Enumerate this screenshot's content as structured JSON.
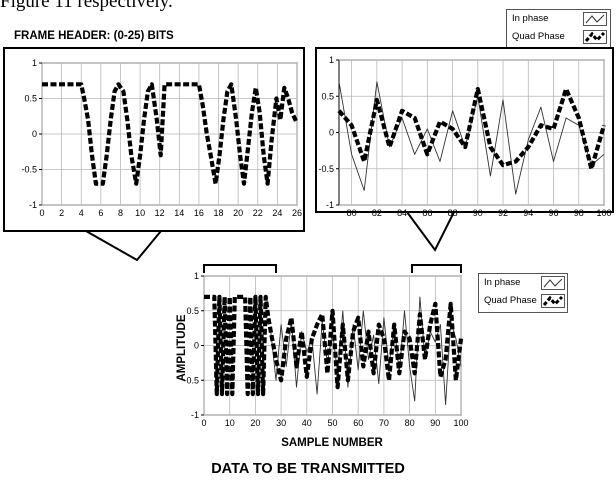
{
  "caption_fragment": "Figure 11 respectively.",
  "frame_header_label": "FRAME HEADER: (0-25) BITS",
  "bottom_title": "DATA TO BE TRANSMITTED",
  "legend": {
    "in_phase": "In phase",
    "quad_phase": "Quad Phase"
  },
  "colors": {
    "in_phase": "#333333",
    "quad_phase": "#000000",
    "grid": "#b8b8b8",
    "frame": "#000000"
  },
  "chart_data": [
    {
      "type": "line",
      "title": "FRAME HEADER: (0-25) BITS",
      "xlim": [
        0,
        26
      ],
      "ylim": [
        -1,
        1
      ],
      "xticks": [
        0,
        2,
        4,
        6,
        8,
        10,
        12,
        14,
        16,
        18,
        20,
        22,
        24,
        26
      ],
      "yticks": [
        -1,
        -0.5,
        0,
        0.5,
        1
      ],
      "grid": true,
      "series": [
        {
          "name": "Quad Phase",
          "style": "thick-dashed",
          "x": [
            0,
            4,
            4.3,
            4.7,
            5.1,
            5.5,
            6.2,
            6.6,
            7,
            7.4,
            7.8,
            8.3,
            8.7,
            9.1,
            9.6,
            10,
            10.4,
            10.8,
            11.2,
            11.7,
            12.1,
            12.5,
            16,
            16.4,
            16.8,
            17.2,
            17.7,
            18.1,
            18.5,
            18.9,
            19.3,
            19.8,
            20.2,
            20.6,
            21,
            21.4,
            21.8,
            22.2,
            22.6,
            23,
            23.4,
            23.9,
            24.3,
            24.7,
            25.1,
            25.5,
            26
          ],
          "y": [
            0.7,
            0.7,
            0.5,
            0.2,
            -0.3,
            -0.7,
            -0.7,
            -0.3,
            0.2,
            0.6,
            0.7,
            0.6,
            0.2,
            -0.3,
            -0.7,
            -0.3,
            0.2,
            0.6,
            0.7,
            0.2,
            -0.3,
            0.7,
            0.7,
            0.4,
            0,
            -0.3,
            -0.7,
            -0.3,
            0.2,
            0.6,
            0.7,
            0.2,
            -0.3,
            -0.7,
            -0.2,
            0.3,
            0.65,
            0.3,
            -0.3,
            -0.7,
            -0.1,
            0.5,
            0.2,
            0.65,
            0.5,
            0.3,
            0.15
          ]
        }
      ]
    },
    {
      "type": "line",
      "xlim": [
        79,
        100
      ],
      "ylim": [
        -1,
        1
      ],
      "xticks": [
        80,
        82,
        84,
        86,
        88,
        90,
        92,
        94,
        96,
        98,
        100
      ],
      "yticks": [
        -1,
        -0.5,
        0,
        0.5,
        1
      ],
      "grid": true,
      "series": [
        {
          "name": "In phase",
          "style": "thin",
          "x": [
            79,
            80,
            81,
            82,
            83,
            84,
            85,
            86,
            87,
            88,
            89,
            90,
            91,
            92,
            93,
            94,
            95,
            96,
            97,
            98,
            99,
            100
          ],
          "y": [
            0.7,
            -0.3,
            -0.8,
            0.7,
            -0.2,
            0.2,
            -0.3,
            0.05,
            -0.4,
            0.3,
            -0.2,
            0.5,
            -0.6,
            0.45,
            -0.85,
            -0.1,
            0.35,
            -0.4,
            0.2,
            0.1,
            -0.45,
            -0.3
          ]
        },
        {
          "name": "Quad Phase",
          "style": "thick-dashed",
          "x": [
            79,
            80,
            81,
            82,
            83,
            84,
            85,
            86,
            87,
            88,
            89,
            90,
            91,
            92,
            93,
            94,
            95,
            96,
            97,
            98,
            99,
            100
          ],
          "y": [
            0.3,
            0.1,
            -0.4,
            0.45,
            -0.2,
            0.3,
            0.2,
            -0.3,
            0.15,
            0.05,
            -0.2,
            0.6,
            -0.2,
            -0.45,
            -0.4,
            -0.2,
            0.1,
            0.05,
            0.6,
            0.2,
            -0.5,
            0.1
          ]
        }
      ]
    },
    {
      "type": "line",
      "xlabel": "SAMPLE NUMBER",
      "ylabel": "AMPLITUDE",
      "xlim": [
        0,
        100
      ],
      "ylim": [
        -1,
        1
      ],
      "xticks": [
        0,
        10,
        20,
        30,
        40,
        50,
        60,
        70,
        80,
        90,
        100
      ],
      "yticks": [
        -1,
        -0.5,
        0,
        0.5,
        1
      ],
      "grid": true,
      "series": [
        {
          "name": "In phase",
          "style": "thin",
          "x": [
            26,
            28,
            30,
            32,
            34,
            36,
            38,
            40,
            42,
            44,
            46,
            48,
            50,
            52,
            54,
            56,
            58,
            60,
            62,
            64,
            66,
            68,
            70,
            72,
            74,
            76,
            78,
            80,
            82,
            84,
            86,
            88,
            90,
            92,
            94,
            96,
            98,
            100
          ],
          "y": [
            0.2,
            -0.5,
            0.3,
            -0.3,
            0.35,
            -0.6,
            0.2,
            -0.1,
            0.1,
            -0.7,
            0.35,
            -0.25,
            0.2,
            -0.4,
            0.5,
            -0.6,
            0.3,
            -0.35,
            0.5,
            -0.2,
            0.15,
            -0.55,
            0.4,
            -0.3,
            0.3,
            -0.4,
            0.5,
            -0.3,
            -0.8,
            0.7,
            -0.2,
            0.2,
            0.05,
            0.3,
            -0.85,
            0.35,
            0.1,
            -0.3
          ]
        },
        {
          "name": "Quad Phase",
          "style": "thick-dashed",
          "x": [
            0,
            4,
            5,
            6,
            7,
            8,
            9,
            10,
            11,
            12,
            13,
            16,
            17,
            18,
            19,
            20,
            21,
            22,
            23,
            24,
            25,
            26,
            28,
            30,
            32,
            34,
            36,
            38,
            40,
            42,
            44,
            46,
            48,
            50,
            52,
            54,
            56,
            58,
            60,
            62,
            64,
            66,
            68,
            70,
            72,
            74,
            76,
            78,
            80,
            82,
            84,
            86,
            88,
            90,
            92,
            94,
            96,
            98,
            100
          ],
          "y": [
            0.7,
            0.7,
            -0.7,
            0.7,
            -0.7,
            0.7,
            -0.7,
            0.7,
            -0.7,
            0.7,
            0.7,
            0.7,
            -0.7,
            0.7,
            -0.7,
            0.7,
            -0.7,
            0.7,
            -0.7,
            0.7,
            0.4,
            0.2,
            -0.2,
            -0.5,
            0.1,
            0.4,
            -0.3,
            0.2,
            -0.45,
            0.1,
            0.3,
            0.45,
            -0.4,
            0.5,
            -0.6,
            0.3,
            -0.5,
            0.2,
            0.4,
            -0.3,
            0.2,
            -0.4,
            0.3,
            0.1,
            -0.5,
            0.3,
            -0.4,
            0.2,
            0.1,
            -0.4,
            0.45,
            -0.2,
            0.3,
            0.6,
            -0.45,
            -0.2,
            0.6,
            -0.5,
            0.1
          ]
        }
      ]
    }
  ]
}
